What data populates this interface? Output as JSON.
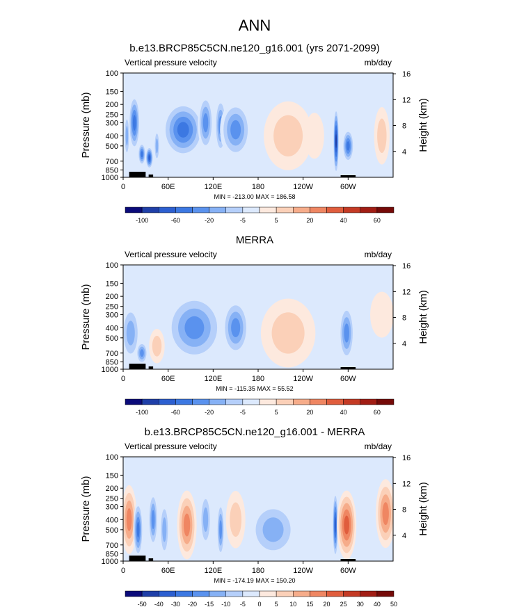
{
  "figure": {
    "title": "ANN",
    "colors": [
      "#0b0b7a",
      "#1f3fa8",
      "#2c5fd0",
      "#3c78e2",
      "#5a92ee",
      "#86b1f5",
      "#b5cffa",
      "#dce9fd",
      "#fde9de",
      "#fbd0b8",
      "#f6ac8a",
      "#ef8662",
      "#e05d3d",
      "#c43a24",
      "#a11d14",
      "#750a08"
    ]
  },
  "chart_data": [
    {
      "type": "heatmap",
      "title": "b.e13.BRCP85C5CN.ne120_g16.001 (yrs 2071-2099)",
      "left_label": "Vertical pressure velocity",
      "right_label": "mb/day",
      "ylabel": "Pressure (mb)",
      "y2label": "Height (km)",
      "y_ticks": [
        "100",
        "150",
        "200",
        "250",
        "300",
        "400",
        "500",
        "700",
        "850",
        "1000"
      ],
      "y2_ticks": [
        "16",
        "12",
        "8",
        "4"
      ],
      "x_ticks": [
        "0",
        "60E",
        "120E",
        "180",
        "120W",
        "60W"
      ],
      "x_range_deg": [
        0,
        360
      ],
      "stats": "MIN = -213.00   MAX = 186.58",
      "colorbar_labels": [
        "-100",
        "-60",
        "-20",
        "-5",
        "5",
        "20",
        "40",
        "60"
      ],
      "colorbar_label_positions": [
        1,
        3,
        5,
        7,
        9,
        11,
        13,
        15
      ],
      "field": [
        {
          "lon": 5,
          "p": 400,
          "w": 3,
          "d": 4,
          "v": -3
        },
        {
          "lon": 15,
          "p": 300,
          "w": 6,
          "d": 5,
          "v": -5
        },
        {
          "lon": 25,
          "p": 600,
          "w": 4,
          "d": 2,
          "v": -5
        },
        {
          "lon": 35,
          "p": 650,
          "w": 4,
          "d": 2,
          "v": -6
        },
        {
          "lon": 45,
          "p": 500,
          "w": 3,
          "d": 3,
          "v": -3
        },
        {
          "lon": 80,
          "p": 350,
          "w": 22,
          "d": 5,
          "v": -5
        },
        {
          "lon": 110,
          "p": 300,
          "w": 8,
          "d": 5,
          "v": -4
        },
        {
          "lon": 130,
          "p": 320,
          "w": 6,
          "d": 5,
          "v": -4
        },
        {
          "lon": 150,
          "p": 350,
          "w": 16,
          "d": 5,
          "v": -4
        },
        {
          "lon": 220,
          "p": 400,
          "w": 25,
          "d": 6,
          "v": 2
        },
        {
          "lon": 255,
          "p": 400,
          "w": 10,
          "d": 4,
          "v": 1
        },
        {
          "lon": 284,
          "p": 450,
          "w": 3,
          "d": 6,
          "v": -7
        },
        {
          "lon": 300,
          "p": 500,
          "w": 6,
          "d": 3,
          "v": -5
        },
        {
          "lon": 345,
          "p": 400,
          "w": 8,
          "d": 5,
          "v": 2
        }
      ]
    },
    {
      "type": "heatmap",
      "title": "MERRA",
      "left_label": "Vertical pressure velocity",
      "right_label": "mb/day",
      "ylabel": "Pressure (mb)",
      "y2label": "Height (km)",
      "y_ticks": [
        "100",
        "150",
        "200",
        "250",
        "300",
        "400",
        "500",
        "700",
        "850",
        "1000"
      ],
      "y2_ticks": [
        "16",
        "12",
        "8",
        "4"
      ],
      "x_ticks": [
        "0",
        "60E",
        "120E",
        "180",
        "120W",
        "60W"
      ],
      "x_range_deg": [
        0,
        360
      ],
      "stats": "MIN = -115.35   MAX =  55.52",
      "colorbar_labels": [
        "-100",
        "-60",
        "-20",
        "-5",
        "5",
        "20",
        "40",
        "60"
      ],
      "colorbar_label_positions": [
        1,
        3,
        5,
        7,
        9,
        11,
        13,
        15
      ],
      "field": [
        {
          "lon": 10,
          "p": 450,
          "w": 10,
          "d": 5,
          "v": -3
        },
        {
          "lon": 25,
          "p": 700,
          "w": 6,
          "d": 2,
          "v": -4
        },
        {
          "lon": 45,
          "p": 600,
          "w": 8,
          "d": 3,
          "v": 2
        },
        {
          "lon": 95,
          "p": 400,
          "w": 30,
          "d": 6,
          "v": -4
        },
        {
          "lon": 150,
          "p": 400,
          "w": 14,
          "d": 5,
          "v": -4
        },
        {
          "lon": 220,
          "p": 450,
          "w": 28,
          "d": 6,
          "v": 2
        },
        {
          "lon": 298,
          "p": 450,
          "w": 8,
          "d": 5,
          "v": -4
        },
        {
          "lon": 345,
          "p": 300,
          "w": 12,
          "d": 4,
          "v": 1
        }
      ]
    },
    {
      "type": "heatmap",
      "title": "b.e13.BRCP85C5CN.ne120_g16.001 - MERRA",
      "left_label": "Vertical pressure velocity",
      "right_label": "mb/day",
      "ylabel": "Pressure (mb)",
      "y2label": "Height (km)",
      "y_ticks": [
        "100",
        "150",
        "200",
        "250",
        "300",
        "400",
        "500",
        "700",
        "850",
        "1000"
      ],
      "y2_ticks": [
        "16",
        "12",
        "8",
        "4"
      ],
      "x_ticks": [
        "0",
        "60E",
        "120E",
        "180",
        "120W",
        "60W"
      ],
      "x_range_deg": [
        0,
        360
      ],
      "stats": "MIN = -174.19   MAX = 150.20",
      "colorbar_labels": [
        "-50",
        "-40",
        "-30",
        "-20",
        "-15",
        "-10",
        "-5",
        "0",
        "5",
        "10",
        "15",
        "20",
        "25",
        "30",
        "40",
        "50"
      ],
      "colorbar_label_positions": [
        1,
        2,
        3,
        4,
        5,
        6,
        7,
        8,
        9,
        10,
        11,
        12,
        13,
        14,
        15,
        16
      ],
      "field": [
        {
          "lon": 8,
          "p": 400,
          "w": 8,
          "d": 6,
          "v": 4
        },
        {
          "lon": 20,
          "p": 500,
          "w": 5,
          "d": 5,
          "v": -5
        },
        {
          "lon": 40,
          "p": 400,
          "w": 5,
          "d": 5,
          "v": -4
        },
        {
          "lon": 55,
          "p": 500,
          "w": 5,
          "d": 5,
          "v": -3
        },
        {
          "lon": 85,
          "p": 450,
          "w": 10,
          "d": 6,
          "v": 4
        },
        {
          "lon": 110,
          "p": 400,
          "w": 6,
          "d": 5,
          "v": -3
        },
        {
          "lon": 130,
          "p": 500,
          "w": 4,
          "d": 5,
          "v": -4
        },
        {
          "lon": 150,
          "p": 400,
          "w": 10,
          "d": 5,
          "v": 2
        },
        {
          "lon": 200,
          "p": 500,
          "w": 25,
          "d": 5,
          "v": -3
        },
        {
          "lon": 283,
          "p": 450,
          "w": 3,
          "d": 6,
          "v": -6
        },
        {
          "lon": 298,
          "p": 450,
          "w": 10,
          "d": 6,
          "v": 5
        },
        {
          "lon": 350,
          "p": 350,
          "w": 10,
          "d": 6,
          "v": 4
        }
      ]
    }
  ]
}
